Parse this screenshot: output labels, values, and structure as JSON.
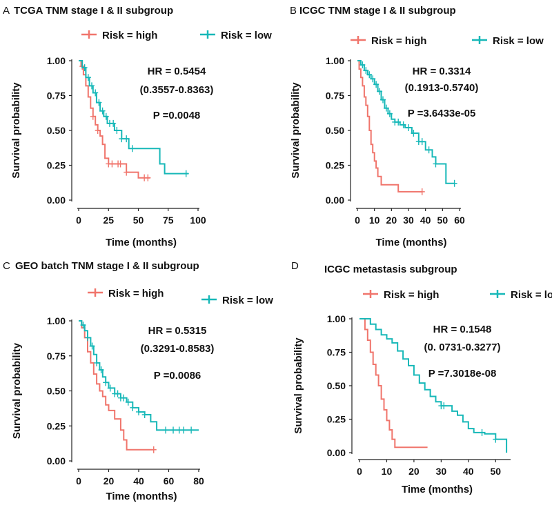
{
  "colors": {
    "high": "#f0756c",
    "low": "#17b8b8",
    "axis": "#222222",
    "text": "#111111"
  },
  "chart_data": [
    {
      "type": "line",
      "panel": "A",
      "title": "TCGA TNM stage I & II subgroup",
      "xlabel": "Time (months)",
      "ylabel": "Survival probability",
      "xlim": [
        0,
        100
      ],
      "ylim": [
        0,
        1
      ],
      "xticks": [
        0,
        25,
        50,
        75,
        100
      ],
      "yticks": [
        "0.00",
        "0.25",
        "0.50",
        "0.75",
        "1.00"
      ],
      "legend": [
        {
          "label": "Risk = high",
          "key": "high"
        },
        {
          "label": "Risk = low",
          "key": "low"
        }
      ],
      "annotations": [
        "HR = 0.5454",
        "(0.3557-0.8363)",
        "P =0.0048"
      ],
      "series": [
        {
          "name": "Risk = high",
          "key": "high",
          "x": [
            0,
            2,
            4,
            6,
            8,
            10,
            12,
            14,
            16,
            18,
            20,
            22,
            25,
            30,
            40,
            50,
            60
          ],
          "y": [
            1.0,
            0.96,
            0.9,
            0.82,
            0.74,
            0.66,
            0.6,
            0.54,
            0.5,
            0.46,
            0.4,
            0.3,
            0.26,
            0.26,
            0.2,
            0.16,
            0.16
          ],
          "censor_x": [
            3,
            12,
            16,
            25,
            28,
            33,
            35,
            40,
            55,
            58
          ]
        },
        {
          "name": "Risk = low",
          "key": "low",
          "x": [
            0,
            3,
            6,
            9,
            12,
            15,
            18,
            21,
            24,
            30,
            36,
            42,
            60,
            68,
            72,
            92
          ],
          "y": [
            1.0,
            0.95,
            0.88,
            0.82,
            0.77,
            0.7,
            0.64,
            0.6,
            0.55,
            0.5,
            0.44,
            0.37,
            0.37,
            0.26,
            0.19,
            0.19
          ],
          "censor_x": [
            5,
            8,
            11,
            14,
            17,
            20,
            23,
            26,
            29,
            32,
            36,
            40,
            45,
            90
          ]
        }
      ]
    },
    {
      "type": "line",
      "panel": "B",
      "title": "ICGC TNM stage I & II subgroup",
      "xlabel": "Time (months)",
      "ylabel": "Survival probability",
      "xlim": [
        0,
        60
      ],
      "ylim": [
        0,
        1
      ],
      "xticks": [
        0,
        10,
        20,
        30,
        40,
        50,
        60
      ],
      "yticks": [
        "0.00",
        "0.25",
        "0.50",
        "0.75",
        "1.00"
      ],
      "legend": [
        {
          "label": "Risk = high",
          "key": "high"
        },
        {
          "label": "Risk = low",
          "key": "low"
        }
      ],
      "annotations": [
        "HR = 0.3314",
        "(0.1913-0.5740)",
        "P =3.6433e-05"
      ],
      "series": [
        {
          "name": "Risk = high",
          "key": "high",
          "x": [
            0,
            1,
            2,
            3,
            4,
            5,
            6,
            7,
            8,
            9,
            10,
            11,
            12,
            14,
            16,
            24,
            38
          ],
          "y": [
            1.0,
            0.94,
            0.88,
            0.82,
            0.74,
            0.68,
            0.6,
            0.5,
            0.4,
            0.34,
            0.28,
            0.23,
            0.17,
            0.11,
            0.11,
            0.06,
            0.06
          ],
          "censor_x": [
            38
          ]
        },
        {
          "name": "Risk = low",
          "key": "low",
          "x": [
            0,
            2,
            4,
            6,
            8,
            10,
            12,
            14,
            16,
            18,
            20,
            22,
            25,
            28,
            32,
            36,
            40,
            44,
            46,
            50,
            52,
            57
          ],
          "y": [
            1.0,
            0.97,
            0.93,
            0.9,
            0.87,
            0.83,
            0.78,
            0.72,
            0.66,
            0.62,
            0.58,
            0.56,
            0.54,
            0.52,
            0.48,
            0.42,
            0.36,
            0.31,
            0.26,
            0.26,
            0.12,
            0.12
          ],
          "censor_x": [
            3,
            5,
            7,
            9,
            11,
            13,
            15,
            17,
            19,
            22,
            24,
            27,
            30,
            33,
            36,
            38,
            42,
            46,
            57
          ]
        }
      ]
    },
    {
      "type": "line",
      "panel": "C",
      "title": "GEO batch TNM stage I & II subgroup",
      "xlabel": "Time (months)",
      "ylabel": "Survival probability",
      "xlim": [
        0,
        80
      ],
      "ylim": [
        0,
        1
      ],
      "xticks": [
        0,
        20,
        40,
        60,
        80
      ],
      "yticks": [
        "0.00",
        "0.25",
        "0.50",
        "0.75",
        "1.00"
      ],
      "legend": [
        {
          "label": "Risk = high",
          "key": "high"
        },
        {
          "label": "Risk = low",
          "key": "low"
        }
      ],
      "annotations": [
        "HR = 0.5315",
        "(0.3291-0.8583)",
        "P =0.0086"
      ],
      "series": [
        {
          "name": "Risk = high",
          "key": "high",
          "x": [
            0,
            2,
            4,
            6,
            8,
            10,
            12,
            14,
            16,
            18,
            20,
            24,
            28,
            30,
            32,
            50
          ],
          "y": [
            1.0,
            0.95,
            0.88,
            0.78,
            0.7,
            0.62,
            0.55,
            0.5,
            0.46,
            0.4,
            0.36,
            0.3,
            0.22,
            0.15,
            0.08,
            0.08
          ],
          "censor_x": [
            50
          ]
        },
        {
          "name": "Risk = low",
          "key": "low",
          "x": [
            0,
            2,
            4,
            6,
            8,
            10,
            12,
            14,
            16,
            18,
            20,
            24,
            28,
            32,
            36,
            40,
            44,
            48,
            52,
            80
          ],
          "y": [
            1.0,
            0.97,
            0.93,
            0.88,
            0.82,
            0.76,
            0.7,
            0.65,
            0.6,
            0.56,
            0.52,
            0.48,
            0.45,
            0.42,
            0.38,
            0.35,
            0.33,
            0.28,
            0.22,
            0.22
          ],
          "censor_x": [
            3,
            6,
            9,
            12,
            15,
            18,
            21,
            24,
            26,
            28,
            30,
            33,
            36,
            40,
            44,
            58,
            63,
            67,
            70,
            75
          ]
        }
      ]
    },
    {
      "type": "line",
      "panel": "D",
      "title": "ICGC metastasis subgroup",
      "xlabel": "Time (months)",
      "ylabel": "Survival probability",
      "xlim": [
        0,
        55
      ],
      "ylim": [
        0,
        1
      ],
      "xticks": [
        0,
        10,
        20,
        30,
        40,
        50
      ],
      "yticks": [
        "0.00",
        "0.25",
        "0.50",
        "0.75",
        "1.00"
      ],
      "legend": [
        {
          "label": "Risk = high",
          "key": "high"
        },
        {
          "label": "Risk = low",
          "key": "low"
        }
      ],
      "annotations": [
        "HR = 0.1548",
        "(0. 0731-0.3277)",
        "P =7.3018e-08"
      ],
      "series": [
        {
          "name": "Risk = high",
          "key": "high",
          "x": [
            0,
            2,
            3,
            4,
            5,
            6,
            7,
            8,
            9,
            10,
            11,
            12,
            13,
            25
          ],
          "y": [
            1.0,
            0.92,
            0.84,
            0.75,
            0.66,
            0.58,
            0.5,
            0.4,
            0.32,
            0.24,
            0.17,
            0.1,
            0.04,
            0.04
          ],
          "censor_x": []
        },
        {
          "name": "Risk = low",
          "key": "low",
          "x": [
            0,
            4,
            6,
            8,
            10,
            12,
            14,
            16,
            18,
            20,
            22,
            24,
            26,
            28,
            30,
            32,
            34,
            36,
            38,
            40,
            42,
            46,
            50,
            54
          ],
          "y": [
            1.0,
            0.96,
            0.92,
            0.88,
            0.85,
            0.82,
            0.76,
            0.7,
            0.65,
            0.58,
            0.52,
            0.47,
            0.42,
            0.38,
            0.35,
            0.35,
            0.31,
            0.28,
            0.23,
            0.18,
            0.15,
            0.14,
            0.1,
            0.0
          ],
          "censor_x": [
            30,
            31,
            45,
            50
          ]
        }
      ]
    }
  ]
}
